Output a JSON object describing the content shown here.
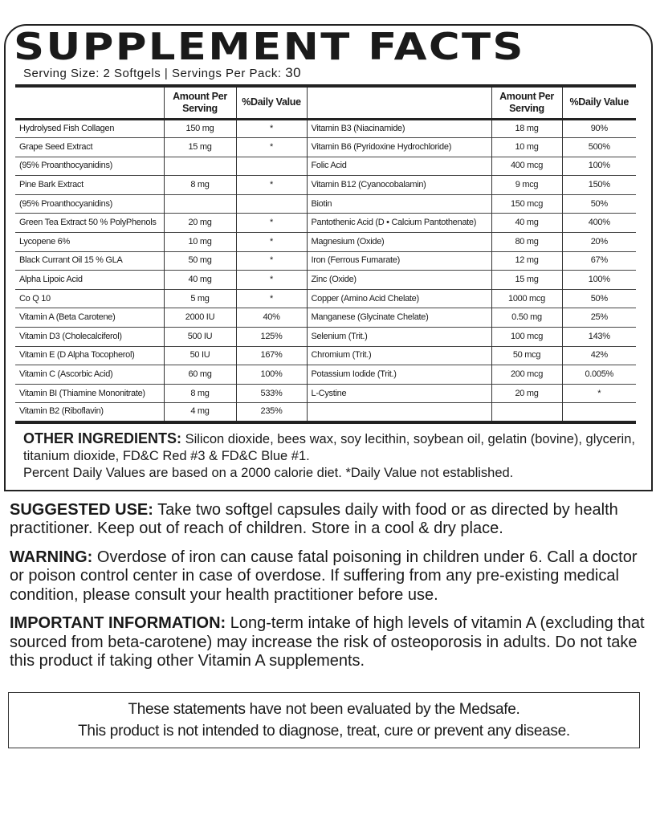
{
  "title": "SUPPLEMENT FACTS",
  "serving": {
    "text": "Serving Size: 2 Softgels | Servings Per Pack:",
    "count": "30"
  },
  "headers": {
    "amount": "Amount Per Serving",
    "dv": "%Daily Value"
  },
  "rows": [
    [
      [
        "Hydrolysed Fish Collagen",
        "150 mg",
        "*"
      ],
      [
        "Vitamin B3 (Niacinamide)",
        "18 mg",
        "90%"
      ]
    ],
    [
      [
        "Grape Seed Extract",
        "15 mg",
        "*"
      ],
      [
        "Vitamin B6 (Pyridoxine Hydrochloride)",
        "10 mg",
        "500%"
      ]
    ],
    [
      [
        "(95% Proanthocyanidins)",
        "",
        ""
      ],
      [
        "Folic Acid",
        "400 mcg",
        "100%"
      ]
    ],
    [
      [
        "Pine Bark Extract",
        "8 mg",
        "*"
      ],
      [
        "Vitamin B12 (Cyanocobalamin)",
        "9 mcg",
        "150%"
      ]
    ],
    [
      [
        "(95% Proanthocyanidins)",
        "",
        ""
      ],
      [
        "Biotin",
        "150 mcg",
        "50%"
      ]
    ],
    [
      [
        "Green Tea Extract 50 % PolyPhenols",
        "20 mg",
        "*"
      ],
      [
        "Pantothenic Acid (D • Calcium Pantothenate)",
        "40 mg",
        "400%"
      ]
    ],
    [
      [
        "Lycopene 6%",
        "10 mg",
        "*"
      ],
      [
        "Magnesium (Oxide)",
        "80 mg",
        "20%"
      ]
    ],
    [
      [
        "Black Currant Oil 15 % GLA",
        "50 mg",
        "*"
      ],
      [
        "Iron (Ferrous Fumarate)",
        "12 mg",
        "67%"
      ]
    ],
    [
      [
        "Alpha Lipoic Acid",
        "40 mg",
        "*"
      ],
      [
        "Zinc (Oxide)",
        "15 mg",
        "100%"
      ]
    ],
    [
      [
        "Co Q 10",
        "5 mg",
        "*"
      ],
      [
        "Copper (Amino Acid Chelate)",
        "1000 mcg",
        "50%"
      ]
    ],
    [
      [
        "Vitamin A (Beta Carotene)",
        "2000 IU",
        "40%"
      ],
      [
        "Manganese (Glycinate Chelate)",
        "0.50 mg",
        "25%"
      ]
    ],
    [
      [
        "Vitamin D3 (Cholecalciferol)",
        "500 IU",
        "125%"
      ],
      [
        "Selenium (Trit.)",
        "100 mcg",
        "143%"
      ]
    ],
    [
      [
        "Vitamin E (D Alpha Tocopherol)",
        "50 IU",
        "167%"
      ],
      [
        "Chromium (Trit.)",
        "50 mcg",
        "42%"
      ]
    ],
    [
      [
        "Vitamin C (Ascorbic Acid)",
        "60 mg",
        "100%"
      ],
      [
        "Potassium Iodide (Trit.)",
        "200 mcg",
        "0.005%"
      ]
    ],
    [
      [
        "Vitamin BI (Thiamine Mononitrate)",
        "8 mg",
        "533%"
      ],
      [
        "L-Cystine",
        "20 mg",
        "*"
      ]
    ],
    [
      [
        "Vitamin B2 (Riboflavin)",
        "4 mg",
        "235%"
      ],
      [
        "",
        "",
        ""
      ]
    ]
  ],
  "other": {
    "label": "OTHER INGREDIENTS:",
    "text": " Silicon dioxide, bees wax, soy lecithin, soybean oil, gelatin (bovine), glycerin, titanium dioxide, FD&C Red #3 & FD&C Blue #1.",
    "note": "Percent Daily Values are based on a 2000 calorie diet. *Daily Value not established."
  },
  "suggested": {
    "label": "SUGGESTED USE:",
    "text": " Take two softgel capsules daily with food or as directed by health practitioner. Keep out of reach of children. Store in a cool & dry place."
  },
  "warning": {
    "label": "WARNING:",
    "text": " Overdose of iron can cause fatal poisoning in children under 6. Call a doctor or poison control center in case of overdose. If suffering from any pre-existing medical condition, please consult your health practitioner before use."
  },
  "important": {
    "label": "IMPORTANT INFORMATION:",
    "text": " Long-term intake of high levels of vitamin A (excluding that sourced from beta-carotene) may increase the risk of osteoporosis in adults. Do not take this product if taking other Vitamin A supplements."
  },
  "disclaimer": {
    "line1": "These statements have not been evaluated by the Medsafe.",
    "line2": "This product is not intended to diagnose, treat, cure or prevent any disease."
  }
}
